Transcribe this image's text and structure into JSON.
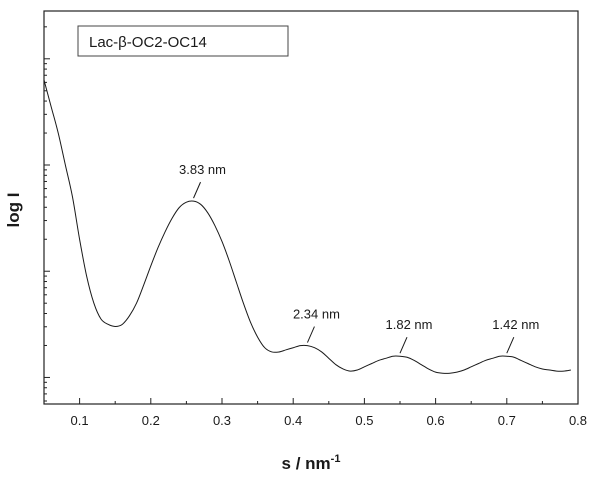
{
  "chart_data": {
    "type": "line",
    "title": "",
    "xlabel_base": "s / nm",
    "xlabel_sup": "-1",
    "ylabel": "log I",
    "xlim": [
      0.05,
      0.8
    ],
    "x_ticks": [
      0.1,
      0.2,
      0.3,
      0.4,
      0.5,
      0.6,
      0.7,
      0.8
    ],
    "x_tick_labels": [
      "0.1",
      "0.2",
      "0.3",
      "0.4",
      "0.5",
      "0.6",
      "0.7",
      "0.8"
    ],
    "y_tick_labels_shown": false,
    "grid": false,
    "legend": {
      "text": "Lac-β-OC2-OC14",
      "placement": "top-left"
    },
    "series": [
      {
        "name": "",
        "x": [
          0.05,
          0.06,
          0.07,
          0.08,
          0.09,
          0.1,
          0.11,
          0.12,
          0.13,
          0.14,
          0.15,
          0.16,
          0.17,
          0.18,
          0.19,
          0.2,
          0.21,
          0.22,
          0.23,
          0.24,
          0.25,
          0.26,
          0.27,
          0.28,
          0.29,
          0.3,
          0.31,
          0.32,
          0.33,
          0.34,
          0.35,
          0.36,
          0.37,
          0.38,
          0.39,
          0.4,
          0.41,
          0.42,
          0.43,
          0.44,
          0.45,
          0.46,
          0.47,
          0.48,
          0.49,
          0.5,
          0.51,
          0.52,
          0.53,
          0.54,
          0.55,
          0.56,
          0.57,
          0.58,
          0.59,
          0.6,
          0.61,
          0.62,
          0.63,
          0.64,
          0.65,
          0.66,
          0.67,
          0.68,
          0.69,
          0.7,
          0.71,
          0.72,
          0.73,
          0.74,
          0.75,
          0.76,
          0.77,
          0.78,
          0.79
        ],
        "y": [
          2.8,
          2.55,
          2.3,
          2.0,
          1.7,
          1.3,
          0.95,
          0.7,
          0.55,
          0.5,
          0.48,
          0.5,
          0.58,
          0.7,
          0.87,
          1.05,
          1.22,
          1.37,
          1.5,
          1.6,
          1.65,
          1.66,
          1.63,
          1.55,
          1.43,
          1.28,
          1.1,
          0.9,
          0.7,
          0.52,
          0.38,
          0.28,
          0.24,
          0.24,
          0.26,
          0.28,
          0.3,
          0.3,
          0.28,
          0.24,
          0.18,
          0.12,
          0.08,
          0.06,
          0.07,
          0.1,
          0.13,
          0.16,
          0.18,
          0.2,
          0.2,
          0.19,
          0.16,
          0.12,
          0.08,
          0.05,
          0.04,
          0.04,
          0.05,
          0.07,
          0.1,
          0.13,
          0.16,
          0.18,
          0.2,
          0.2,
          0.19,
          0.16,
          0.13,
          0.1,
          0.08,
          0.07,
          0.06,
          0.06,
          0.07
        ]
      }
    ],
    "annotations": [
      {
        "text": "3.83 nm",
        "x": 0.26,
        "y": 1.66
      },
      {
        "text": "2.34 nm",
        "x": 0.42,
        "y": 0.3
      },
      {
        "text": "1.82 nm",
        "x": 0.55,
        "y": 0.2
      },
      {
        "text": "1.42 nm",
        "x": 0.7,
        "y": 0.2
      }
    ]
  }
}
